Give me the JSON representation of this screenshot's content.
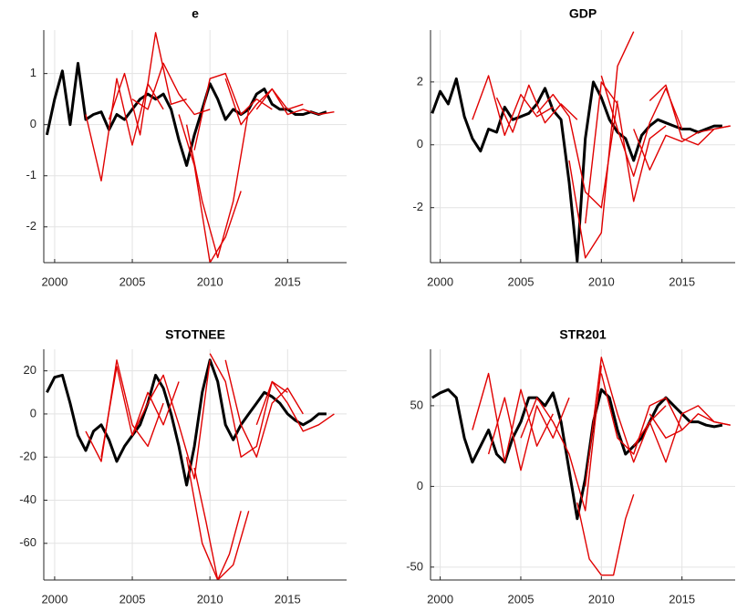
{
  "chart_data": [
    {
      "type": "line",
      "title": "e",
      "xlim": [
        1999.3,
        2018.8
      ],
      "ylim": [
        -2.7,
        1.85
      ],
      "xticks": [
        2000,
        2005,
        2010,
        2015
      ],
      "yticks": [
        -2,
        -1,
        0,
        1
      ],
      "grid": true,
      "series": [
        {
          "color": "#000000",
          "x": [
            1999.5,
            2000,
            2000.5,
            2001,
            2001.5,
            2002,
            2002.5,
            2003,
            2003.5,
            2004,
            2004.5,
            2005,
            2005.5,
            2006,
            2006.5,
            2007,
            2007.5,
            2008,
            2008.5,
            2009,
            2009.5,
            2010,
            2010.5,
            2011,
            2011.5,
            2012,
            2012.5,
            2013,
            2013.5,
            2014,
            2014.5,
            2015,
            2015.5,
            2016,
            2016.5,
            2017,
            2017.5
          ],
          "values": [
            -0.2,
            0.5,
            1.05,
            0.0,
            1.2,
            0.1,
            0.2,
            0.25,
            -0.1,
            0.2,
            0.1,
            0.3,
            0.5,
            0.6,
            0.5,
            0.6,
            0.3,
            -0.3,
            -0.8,
            -0.2,
            0.3,
            0.8,
            0.5,
            0.1,
            0.3,
            0.2,
            0.3,
            0.6,
            0.7,
            0.4,
            0.3,
            0.3,
            0.2,
            0.2,
            0.25,
            0.2,
            0.25
          ]
        },
        {
          "color": "#e00000",
          "x": [
            2002,
            2003,
            2004,
            2005,
            2006,
            2007
          ],
          "values": [
            0.2,
            -1.1,
            0.9,
            -0.4,
            0.8,
            0.3
          ]
        },
        {
          "color": "#e00000",
          "x": [
            2003.5,
            2004.5,
            2005.5,
            2006.5,
            2007.5,
            2008.5
          ],
          "values": [
            0.1,
            1.0,
            -0.2,
            1.8,
            0.4,
            0.5
          ]
        },
        {
          "color": "#e00000",
          "x": [
            2005,
            2006,
            2007,
            2008,
            2009,
            2010
          ],
          "values": [
            0.5,
            0.3,
            1.2,
            0.6,
            0.2,
            0.3
          ]
        },
        {
          "color": "#e00000",
          "x": [
            2008,
            2009,
            2010,
            2011,
            2012
          ],
          "values": [
            0.2,
            -0.8,
            -2.7,
            -2.2,
            -1.3
          ]
        },
        {
          "color": "#e00000",
          "x": [
            2008.5,
            2009.5,
            2010.5,
            2011.5,
            2012.5
          ],
          "values": [
            0.0,
            -1.5,
            -2.6,
            -1.5,
            0.3
          ]
        },
        {
          "color": "#e00000",
          "x": [
            2009,
            2010,
            2011,
            2012,
            2013,
            2014
          ],
          "values": [
            -0.5,
            0.9,
            1.0,
            0.2,
            0.5,
            0.3
          ]
        },
        {
          "color": "#e00000",
          "x": [
            2011,
            2012,
            2013,
            2014,
            2015,
            2016
          ],
          "values": [
            0.9,
            0.0,
            0.4,
            0.7,
            0.3,
            0.4
          ]
        },
        {
          "color": "#e00000",
          "x": [
            2013,
            2014,
            2015,
            2016,
            2017,
            2018
          ],
          "values": [
            0.3,
            0.7,
            0.2,
            0.3,
            0.2,
            0.25
          ]
        }
      ]
    },
    {
      "type": "line",
      "title": "GDP",
      "xlim": [
        1999.4,
        2018.3
      ],
      "ylim": [
        -3.75,
        3.65
      ],
      "xticks": [
        2000,
        2005,
        2010,
        2015
      ],
      "yticks": [
        -2,
        0,
        2
      ],
      "grid": true,
      "series": [
        {
          "color": "#000000",
          "x": [
            1999.5,
            2000,
            2000.5,
            2001,
            2001.5,
            2002,
            2002.5,
            2003,
            2003.5,
            2004,
            2004.5,
            2005,
            2005.5,
            2006,
            2006.5,
            2007,
            2007.5,
            2008,
            2008.5,
            2009,
            2009.5,
            2010,
            2010.5,
            2011,
            2011.5,
            2012,
            2012.5,
            2013,
            2013.5,
            2014,
            2014.5,
            2015,
            2015.5,
            2016,
            2016.5,
            2017,
            2017.5
          ],
          "values": [
            1.0,
            1.7,
            1.3,
            2.1,
            0.9,
            0.2,
            -0.2,
            0.5,
            0.4,
            1.2,
            0.8,
            0.9,
            1.0,
            1.3,
            1.8,
            1.1,
            0.8,
            -1.2,
            -3.7,
            0.2,
            2.0,
            1.5,
            0.8,
            0.4,
            0.2,
            -0.5,
            0.3,
            0.6,
            0.8,
            0.7,
            0.6,
            0.5,
            0.5,
            0.4,
            0.5,
            0.6,
            0.6
          ]
        },
        {
          "color": "#e00000",
          "x": [
            2002,
            2003,
            2004,
            2005,
            2006,
            2007
          ],
          "values": [
            0.8,
            2.2,
            0.3,
            1.6,
            0.9,
            1.2
          ]
        },
        {
          "color": "#e00000",
          "x": [
            2003.5,
            2004.5,
            2005.5,
            2006.5,
            2007.5,
            2008.5
          ],
          "values": [
            1.5,
            0.4,
            1.9,
            0.7,
            1.3,
            0.8
          ]
        },
        {
          "color": "#e00000",
          "x": [
            2006,
            2007,
            2008,
            2009,
            2010,
            2011
          ],
          "values": [
            1.0,
            1.6,
            0.9,
            -1.5,
            -2.0,
            1.4
          ]
        },
        {
          "color": "#e00000",
          "x": [
            2008,
            2009,
            2010,
            2011,
            2012
          ],
          "values": [
            -0.5,
            -3.6,
            -2.8,
            2.5,
            3.6
          ]
        },
        {
          "color": "#e00000",
          "x": [
            2009,
            2010,
            2011,
            2012,
            2013,
            2014
          ],
          "values": [
            -2.5,
            2.0,
            1.3,
            -1.8,
            0.2,
            0.6
          ]
        },
        {
          "color": "#e00000",
          "x": [
            2010,
            2011,
            2012,
            2013,
            2014,
            2015
          ],
          "values": [
            2.2,
            0.5,
            -1.0,
            0.7,
            1.8,
            0.5
          ]
        },
        {
          "color": "#e00000",
          "x": [
            2012,
            2013,
            2014,
            2015,
            2016,
            2017,
            2018
          ],
          "values": [
            0.5,
            -0.8,
            0.3,
            0.1,
            0.4,
            0.5,
            0.6
          ]
        },
        {
          "color": "#e00000",
          "x": [
            2013,
            2014,
            2015,
            2016,
            2017,
            2018
          ],
          "values": [
            1.4,
            1.9,
            0.2,
            0.0,
            0.5,
            0.6
          ]
        }
      ]
    },
    {
      "type": "line",
      "title": "STOTNEE",
      "xlim": [
        1999.3,
        2018.8
      ],
      "ylim": [
        -77,
        30
      ],
      "xticks": [
        2000,
        2005,
        2010,
        2015
      ],
      "yticks": [
        -60,
        -40,
        -20,
        0,
        20
      ],
      "grid": true,
      "series": [
        {
          "color": "#000000",
          "x": [
            1999.5,
            2000,
            2000.5,
            2001,
            2001.5,
            2002,
            2002.5,
            2003,
            2003.5,
            2004,
            2004.5,
            2005,
            2005.5,
            2006,
            2006.5,
            2007,
            2007.5,
            2008,
            2008.5,
            2009,
            2009.5,
            2010,
            2010.5,
            2011,
            2011.5,
            2012,
            2012.5,
            2013,
            2013.5,
            2014,
            2014.5,
            2015,
            2015.5,
            2016,
            2016.5,
            2017,
            2017.5
          ],
          "values": [
            10,
            17,
            18,
            5,
            -10,
            -17,
            -8,
            -5,
            -12,
            -22,
            -15,
            -10,
            -5,
            5,
            18,
            12,
            0,
            -15,
            -33,
            -15,
            10,
            25,
            15,
            -5,
            -12,
            -5,
            0,
            5,
            10,
            8,
            5,
            0,
            -3,
            -5,
            -3,
            0,
            0
          ]
        },
        {
          "color": "#e00000",
          "x": [
            2002,
            2003,
            2004,
            2005,
            2006,
            2007
          ],
          "values": [
            -8,
            -22,
            25,
            -5,
            -15,
            5
          ]
        },
        {
          "color": "#e00000",
          "x": [
            2003,
            2004,
            2005,
            2006,
            2007,
            2008
          ],
          "values": [
            -20,
            22,
            -10,
            10,
            -5,
            15
          ]
        },
        {
          "color": "#e00000",
          "x": [
            2005,
            2006,
            2007,
            2008,
            2009,
            2010
          ],
          "values": [
            -10,
            5,
            18,
            -5,
            -30,
            25
          ]
        },
        {
          "color": "#e00000",
          "x": [
            2008.5,
            2009.5,
            2010.5,
            2011.5,
            2012.5
          ],
          "values": [
            -20,
            -60,
            -77,
            -70,
            -45
          ]
        },
        {
          "color": "#e00000",
          "x": [
            2009,
            2009.75,
            2010.5,
            2011.25,
            2012
          ],
          "values": [
            -25,
            -50,
            -77,
            -65,
            -45
          ]
        },
        {
          "color": "#e00000",
          "x": [
            2010,
            2011,
            2012,
            2013,
            2014,
            2015
          ],
          "values": [
            28,
            15,
            -20,
            -15,
            15,
            10
          ]
        },
        {
          "color": "#e00000",
          "x": [
            2011,
            2012,
            2013,
            2014,
            2015,
            2016
          ],
          "values": [
            25,
            -5,
            -20,
            5,
            12,
            0
          ]
        },
        {
          "color": "#e00000",
          "x": [
            2013,
            2014,
            2015,
            2016,
            2017,
            2018
          ],
          "values": [
            -5,
            15,
            5,
            -8,
            -5,
            0
          ]
        }
      ]
    },
    {
      "type": "line",
      "title": "STR201",
      "xlim": [
        1999.4,
        2018.3
      ],
      "ylim": [
        -58,
        85
      ],
      "xticks": [
        2000,
        2005,
        2010,
        2015
      ],
      "yticks": [
        -50,
        0,
        50
      ],
      "grid": true,
      "series": [
        {
          "color": "#000000",
          "x": [
            1999.5,
            2000,
            2000.5,
            2001,
            2001.5,
            2002,
            2002.5,
            2003,
            2003.5,
            2004,
            2004.5,
            2005,
            2005.5,
            2006,
            2006.5,
            2007,
            2007.5,
            2008,
            2008.5,
            2009,
            2009.5,
            2010,
            2010.5,
            2011,
            2011.5,
            2012,
            2012.5,
            2013,
            2013.5,
            2014,
            2014.5,
            2015,
            2015.5,
            2016,
            2016.5,
            2017,
            2017.5
          ],
          "values": [
            55,
            58,
            60,
            55,
            30,
            15,
            25,
            35,
            20,
            15,
            30,
            40,
            55,
            55,
            50,
            58,
            40,
            10,
            -20,
            5,
            40,
            60,
            55,
            35,
            20,
            25,
            30,
            40,
            50,
            55,
            50,
            45,
            40,
            40,
            38,
            37,
            38
          ]
        },
        {
          "color": "#e00000",
          "x": [
            2002,
            2003,
            2004,
            2005,
            2006,
            2007
          ],
          "values": [
            35,
            70,
            15,
            60,
            25,
            45
          ]
        },
        {
          "color": "#e00000",
          "x": [
            2003,
            2004,
            2005,
            2006,
            2007,
            2008
          ],
          "values": [
            20,
            55,
            10,
            50,
            30,
            55
          ]
        },
        {
          "color": "#e00000",
          "x": [
            2005,
            2006,
            2007,
            2008,
            2009,
            2010
          ],
          "values": [
            30,
            55,
            40,
            20,
            -15,
            75
          ]
        },
        {
          "color": "#e00000",
          "x": [
            2008.5,
            2009.25,
            2010,
            2010.75,
            2011.5,
            2012
          ],
          "values": [
            -10,
            -45,
            -55,
            -55,
            -20,
            -5
          ]
        },
        {
          "color": "#e00000",
          "x": [
            2009,
            2010,
            2011,
            2012,
            2013,
            2014
          ],
          "values": [
            0,
            80,
            45,
            15,
            40,
            50
          ]
        },
        {
          "color": "#e00000",
          "x": [
            2010,
            2011,
            2012,
            2013,
            2014,
            2015
          ],
          "values": [
            70,
            30,
            20,
            50,
            55,
            35
          ]
        },
        {
          "color": "#e00000",
          "x": [
            2012,
            2013,
            2014,
            2015,
            2016,
            2017,
            2018
          ],
          "values": [
            25,
            40,
            15,
            45,
            50,
            40,
            38
          ]
        },
        {
          "color": "#e00000",
          "x": [
            2013,
            2014,
            2015,
            2016,
            2017,
            2018
          ],
          "values": [
            45,
            30,
            35,
            45,
            40,
            38
          ]
        }
      ]
    }
  ]
}
